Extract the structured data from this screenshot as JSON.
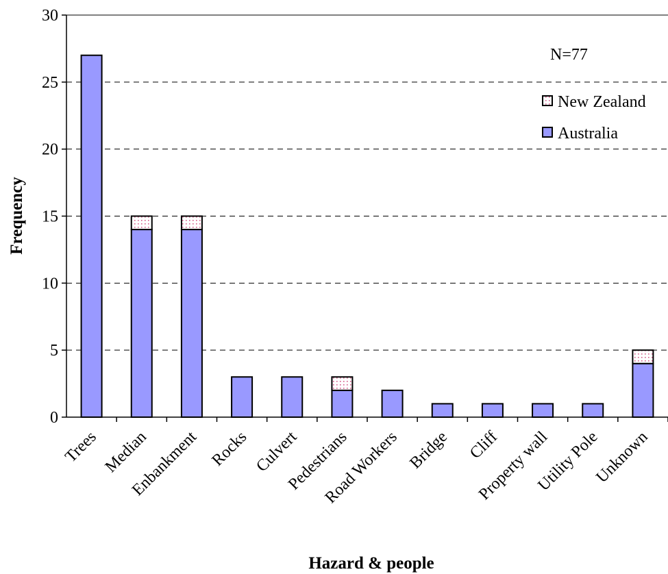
{
  "chart_data": {
    "type": "bar",
    "stacked": true,
    "categories": [
      "Trees",
      "Median",
      "Enbankment",
      "Rocks",
      "Culvert",
      "Pedestrians",
      "Road Workers",
      "Bridge",
      "Cliff",
      "Property wall",
      "Utility Pole",
      "Unknown"
    ],
    "series": [
      {
        "name": "Australia",
        "values": [
          27,
          14,
          14,
          3,
          3,
          2,
          2,
          1,
          1,
          1,
          1,
          4
        ],
        "color": "#9999ff",
        "pattern": "solid"
      },
      {
        "name": "New Zealand",
        "values": [
          0,
          1,
          1,
          0,
          0,
          1,
          0,
          0,
          0,
          0,
          0,
          1
        ],
        "color": "#ffffff",
        "pattern": "dotted-pink"
      }
    ],
    "xlabel": "Hazard & people",
    "ylabel": "Frequency",
    "ylim": [
      0,
      30
    ],
    "yticks": [
      0,
      5,
      10,
      15,
      20,
      25,
      30
    ],
    "grid": "horizontal-dashed",
    "legend_position": "top-right",
    "annotation": "N=77"
  }
}
